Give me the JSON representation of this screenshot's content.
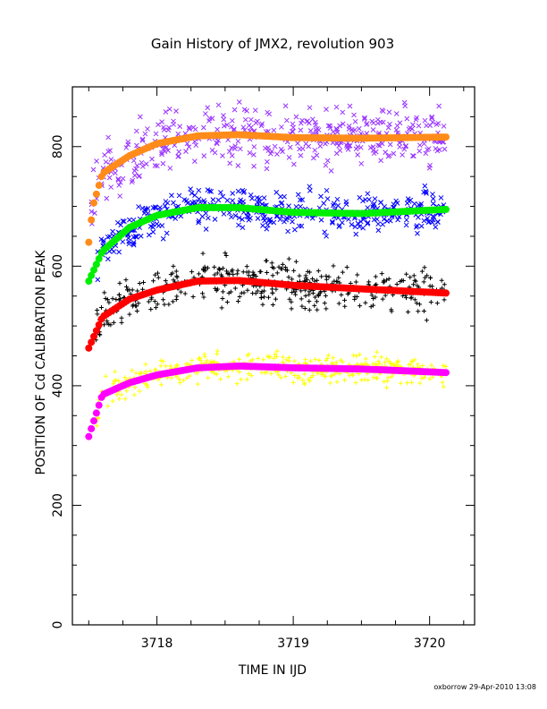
{
  "chart_data": {
    "type": "scatter",
    "title": "Gain History of JMX2, revolution 903",
    "xlabel": "TIME IN IJD",
    "ylabel": "POSITION OF Cd CALIBRATION PEAK",
    "xlim": [
      3717.38,
      3720.33
    ],
    "ylim": [
      0,
      900
    ],
    "x_ticks": [
      3718,
      3719,
      3720
    ],
    "x_tick_labels": [
      "3718",
      "3719",
      "3720"
    ],
    "y_ticks": [
      0,
      200,
      400,
      600,
      800
    ],
    "y_tick_labels": [
      "0",
      "200",
      "400",
      "600",
      "800"
    ],
    "grid": false,
    "series": [
      {
        "marker": "x",
        "color": "#9933ff",
        "kind": "points",
        "x_range": [
          3717.52,
          3720.12
        ],
        "baseline": [
          [
            3717.5,
            700
          ],
          [
            3717.6,
            755
          ],
          [
            3717.8,
            785
          ],
          [
            3718.0,
            805
          ],
          [
            3718.3,
            818
          ],
          [
            3718.6,
            820
          ],
          [
            3719.0,
            815
          ],
          [
            3719.5,
            814
          ],
          [
            3720.12,
            818
          ]
        ],
        "spread": 22
      },
      {
        "marker": "line",
        "color": "#ff8c1a",
        "kind": "fit",
        "x_range": [
          3717.5,
          3720.12
        ],
        "baseline": [
          [
            3717.5,
            640
          ],
          [
            3717.53,
            700
          ],
          [
            3717.6,
            755
          ],
          [
            3717.8,
            785
          ],
          [
            3718.0,
            805
          ],
          [
            3718.3,
            818
          ],
          [
            3718.6,
            820
          ],
          [
            3719.0,
            815
          ],
          [
            3719.5,
            814
          ],
          [
            3720.12,
            816
          ]
        ]
      },
      {
        "marker": "x",
        "color": "#0000ff",
        "kind": "points",
        "x_range": [
          3717.55,
          3720.12
        ],
        "baseline": [
          [
            3717.5,
            575
          ],
          [
            3717.6,
            625
          ],
          [
            3717.8,
            665
          ],
          [
            3718.0,
            685
          ],
          [
            3718.3,
            698
          ],
          [
            3718.6,
            698
          ],
          [
            3719.0,
            690
          ],
          [
            3719.5,
            688
          ],
          [
            3720.12,
            698
          ]
        ],
        "spread": 16
      },
      {
        "marker": "line",
        "color": "#00ee00",
        "kind": "fit",
        "x_range": [
          3717.5,
          3720.12
        ],
        "baseline": [
          [
            3717.5,
            575
          ],
          [
            3717.6,
            625
          ],
          [
            3717.8,
            665
          ],
          [
            3718.0,
            685
          ],
          [
            3718.3,
            698
          ],
          [
            3718.6,
            698
          ],
          [
            3719.0,
            690
          ],
          [
            3719.5,
            688
          ],
          [
            3720.12,
            695
          ]
        ]
      },
      {
        "marker": "+",
        "color": "#000000",
        "kind": "points",
        "x_range": [
          3717.55,
          3720.12
        ],
        "baseline": [
          [
            3717.5,
            465
          ],
          [
            3717.6,
            515
          ],
          [
            3717.8,
            545
          ],
          [
            3718.0,
            560
          ],
          [
            3718.3,
            575
          ],
          [
            3718.6,
            575
          ],
          [
            3719.0,
            568
          ],
          [
            3719.5,
            562
          ],
          [
            3720.12,
            558
          ]
        ],
        "spread": 18
      },
      {
        "marker": "line",
        "color": "#ff0000",
        "kind": "fit",
        "x_range": [
          3717.5,
          3720.12
        ],
        "baseline": [
          [
            3717.5,
            463
          ],
          [
            3717.6,
            515
          ],
          [
            3717.8,
            545
          ],
          [
            3718.0,
            560
          ],
          [
            3718.3,
            575
          ],
          [
            3718.6,
            576
          ],
          [
            3719.0,
            568
          ],
          [
            3719.5,
            562
          ],
          [
            3720.12,
            555
          ]
        ]
      },
      {
        "marker": "+",
        "color": "#ffff00",
        "kind": "points",
        "x_range": [
          3717.55,
          3720.12
        ],
        "baseline": [
          [
            3717.5,
            320
          ],
          [
            3717.6,
            385
          ],
          [
            3717.8,
            405
          ],
          [
            3718.0,
            420
          ],
          [
            3718.3,
            430
          ],
          [
            3718.6,
            433
          ],
          [
            3719.0,
            430
          ],
          [
            3719.5,
            428
          ],
          [
            3720.12,
            425
          ]
        ],
        "spread": 12
      },
      {
        "marker": "line",
        "color": "#ff00ff",
        "kind": "fit",
        "x_range": [
          3717.5,
          3720.12
        ],
        "baseline": [
          [
            3717.5,
            315
          ],
          [
            3717.6,
            385
          ],
          [
            3717.8,
            405
          ],
          [
            3718.0,
            418
          ],
          [
            3718.3,
            430
          ],
          [
            3718.6,
            433
          ],
          [
            3719.0,
            430
          ],
          [
            3719.5,
            428
          ],
          [
            3720.12,
            422
          ]
        ]
      }
    ]
  },
  "footer": "oxborrow 29-Apr-2010 13:08"
}
